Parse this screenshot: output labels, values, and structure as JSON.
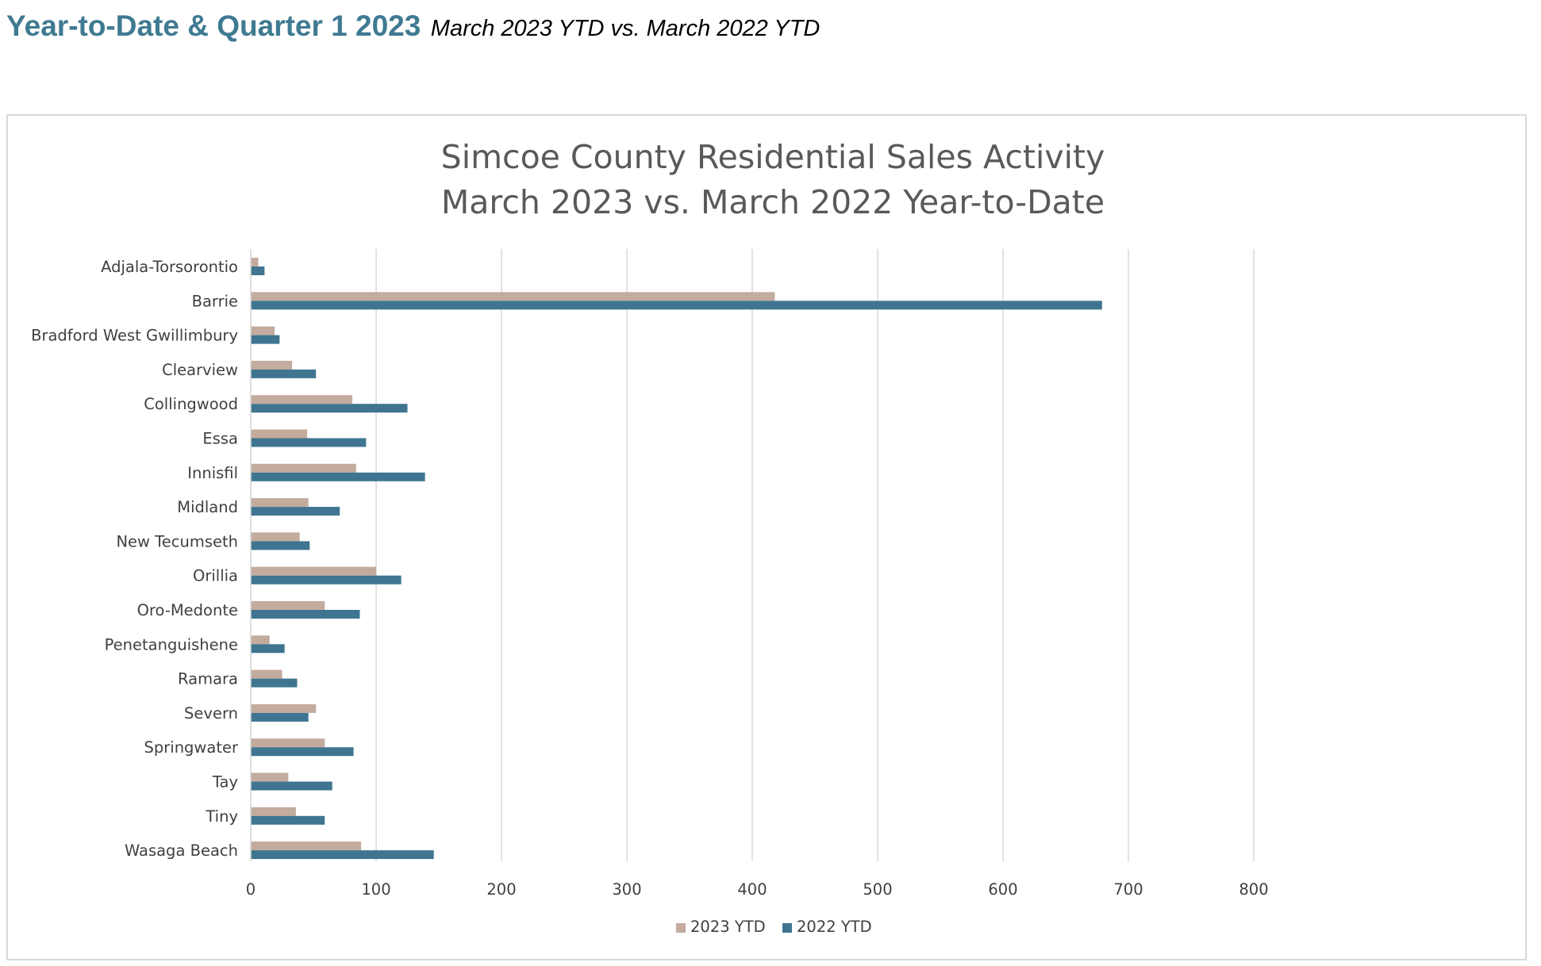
{
  "header": {
    "title": "Year-to-Date & Quarter 1 2023",
    "subtitle": "March 2023 YTD vs. March 2022 YTD"
  },
  "colors": {
    "title": "#3f7a92",
    "series_2023": "#c3ab9d",
    "series_2022": "#3f7590",
    "gridline": "#d9d9d9",
    "text": "#404040"
  },
  "chart_data": {
    "type": "bar",
    "orientation": "horizontal",
    "title": [
      "Simcoe County Residential Sales Activity",
      "March 2023 vs. March 2022 Year-to-Date"
    ],
    "xlabel": "",
    "ylabel": "",
    "xlim": [
      0,
      800
    ],
    "xticks": [
      0,
      100,
      200,
      300,
      400,
      500,
      600,
      700,
      800
    ],
    "grid": true,
    "legend_position": "bottom",
    "categories": [
      "Adjala-Torsorontio",
      "Barrie",
      "Bradford West Gwillimbury",
      "Clearview",
      "Collingwood",
      "Essa",
      "Innisfil",
      "Midland",
      "New Tecumseth",
      "Orillia",
      "Oro-Medonte",
      "Penetanguishene",
      "Ramara",
      "Severn",
      "Springwater",
      "Tay",
      "Tiny",
      "Wasaga Beach"
    ],
    "series": [
      {
        "name": "2023 YTD",
        "color": "#c3ab9d",
        "values": [
          6,
          418,
          19,
          33,
          81,
          45,
          84,
          46,
          39,
          100,
          59,
          15,
          25,
          52,
          59,
          30,
          36,
          88
        ]
      },
      {
        "name": "2022 YTD",
        "color": "#3f7590",
        "values": [
          11,
          679,
          23,
          52,
          125,
          92,
          139,
          71,
          47,
          120,
          87,
          27,
          37,
          46,
          82,
          65,
          59,
          146
        ]
      }
    ]
  }
}
